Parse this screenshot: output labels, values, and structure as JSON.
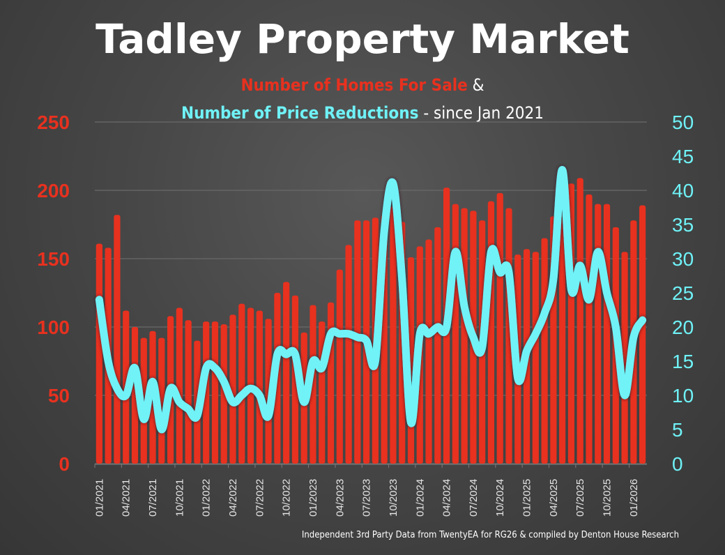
{
  "header": {
    "title": "Tadley Property Market",
    "subtitle_line1_red": "Number of Homes For Sale",
    "subtitle_line1_white": " &",
    "subtitle_line2_cyan": "Number of Price Reductions",
    "subtitle_line2_white": " - since Jan 2021"
  },
  "footer": {
    "source": "Independent 3rd Party Data from TwentyEA for RG26 & compiled by Denton House Research"
  },
  "colors": {
    "bars": "#e8311f",
    "line": "#6ff2f7",
    "background": "#474747"
  },
  "chart_data": {
    "type": "bar+line",
    "title": "Tadley Property Market",
    "subtitle": "Number of Homes For Sale & Number of Price Reductions - since Jan 2021",
    "x": [
      "01/2021",
      "02/2021",
      "03/2021",
      "04/2021",
      "05/2021",
      "06/2021",
      "07/2021",
      "08/2021",
      "09/2021",
      "10/2021",
      "11/2021",
      "12/2021",
      "01/2022",
      "02/2022",
      "03/2022",
      "04/2022",
      "05/2022",
      "06/2022",
      "07/2022",
      "08/2022",
      "09/2022",
      "10/2022",
      "11/2022",
      "12/2022",
      "01/2023",
      "02/2023",
      "03/2023",
      "04/2023",
      "05/2023",
      "06/2023",
      "07/2023",
      "08/2023",
      "09/2023",
      "10/2023",
      "11/2023",
      "12/2023",
      "01/2024",
      "02/2024",
      "03/2024",
      "04/2024",
      "05/2024",
      "06/2024",
      "07/2024",
      "08/2024",
      "09/2024",
      "10/2024",
      "11/2024",
      "12/2024",
      "01/2025",
      "02/2025",
      "03/2025",
      "04/2025",
      "05/2025",
      "06/2025",
      "07/2025",
      "08/2025",
      "09/2025",
      "10/2025",
      "11/2025",
      "12/2025",
      "01/2026",
      "02/2026"
    ],
    "x_tick_labels": [
      "01/2021",
      "04/2021",
      "07/2021",
      "10/2021",
      "01/2022",
      "04/2022",
      "07/2022",
      "10/2022",
      "01/2023",
      "04/2023",
      "07/2023",
      "10/2023",
      "01/2024",
      "04/2024",
      "07/2024",
      "10/2024",
      "01/2025",
      "04/2025",
      "07/2025",
      "10/2025",
      "01/2026"
    ],
    "series": [
      {
        "name": "Number of Homes For Sale",
        "type": "bar",
        "axis": "left",
        "values": [
          161,
          158,
          182,
          112,
          100,
          92,
          97,
          92,
          108,
          114,
          105,
          90,
          104,
          104,
          102,
          109,
          117,
          114,
          112,
          106,
          125,
          133,
          123,
          96,
          116,
          104,
          118,
          142,
          160,
          178,
          178,
          180,
          182,
          188,
          177,
          151,
          159,
          164,
          173,
          202,
          190,
          187,
          185,
          178,
          192,
          198,
          187,
          153,
          157,
          155,
          165,
          181,
          200,
          205,
          209,
          197,
          190,
          190,
          173,
          155,
          178,
          189
        ]
      },
      {
        "name": "Number of Price Reductions",
        "type": "line",
        "axis": "right",
        "values": [
          24,
          15,
          11,
          10,
          14,
          6.5,
          12,
          5,
          11,
          9,
          8,
          7,
          14,
          14,
          12,
          9,
          10,
          11,
          10,
          7,
          16,
          16,
          16,
          9,
          15,
          14,
          19,
          19,
          19,
          18.5,
          18,
          15,
          34,
          41,
          27,
          6,
          19,
          19,
          20,
          20,
          31,
          23,
          18.5,
          17,
          31,
          28,
          28,
          12.5,
          16.5,
          19,
          22,
          27,
          43,
          25.5,
          29,
          24,
          31,
          25,
          20,
          10,
          18.5,
          21
        ]
      }
    ],
    "left_axis": {
      "ylim": [
        0,
        250
      ],
      "ticks": [
        0,
        50,
        100,
        150,
        200,
        250
      ]
    },
    "right_axis": {
      "ylim": [
        0,
        50
      ],
      "ticks": [
        0,
        5,
        10,
        15,
        20,
        25,
        30,
        35,
        40,
        45,
        50
      ]
    },
    "xlabel": "",
    "ylabel": "",
    "grid": true,
    "legend": "none"
  }
}
